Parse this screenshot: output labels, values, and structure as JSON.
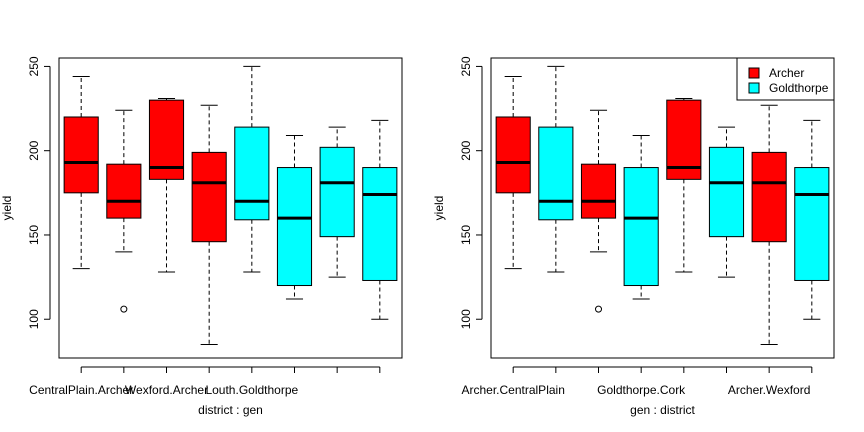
{
  "colors": {
    "Archer": "#ff0000",
    "Goldthorpe": "#00ffff",
    "axis": "#000000"
  },
  "chart_data": [
    {
      "type": "boxplot",
      "xlabel": "district : gen",
      "ylabel": "yield",
      "ylim": [
        77,
        255
      ],
      "yticks": [
        100,
        150,
        200,
        250
      ],
      "grid": false,
      "legend": null,
      "tick_labels": [
        "CentralPlain.Archer",
        "Wexford.Archer",
        "Louth.Goldthorpe"
      ],
      "tick_label_positions": [
        1,
        3,
        5
      ],
      "boxes": [
        {
          "group": "Archer",
          "min": 130,
          "q1": 175,
          "median": 193,
          "q3": 220,
          "max": 244,
          "outliers": []
        },
        {
          "group": "Archer",
          "min": 140,
          "q1": 160,
          "median": 170,
          "q3": 192,
          "max": 224,
          "outliers": [
            106
          ]
        },
        {
          "group": "Archer",
          "min": 128,
          "q1": 183,
          "median": 190,
          "q3": 230,
          "max": 231,
          "outliers": []
        },
        {
          "group": "Archer",
          "min": 85,
          "q1": 146,
          "median": 181,
          "q3": 199,
          "max": 227,
          "outliers": []
        },
        {
          "group": "Goldthorpe",
          "min": 128,
          "q1": 159,
          "median": 170,
          "q3": 214,
          "max": 250,
          "outliers": []
        },
        {
          "group": "Goldthorpe",
          "min": 112,
          "q1": 120,
          "median": 160,
          "q3": 190,
          "max": 209,
          "outliers": []
        },
        {
          "group": "Goldthorpe",
          "min": 125,
          "q1": 149,
          "median": 181,
          "q3": 202,
          "max": 214,
          "outliers": []
        },
        {
          "group": "Goldthorpe",
          "min": 100,
          "q1": 123,
          "median": 174,
          "q3": 190,
          "max": 218,
          "outliers": []
        }
      ]
    },
    {
      "type": "boxplot",
      "xlabel": "gen : district",
      "ylabel": "yield",
      "ylim": [
        77,
        255
      ],
      "yticks": [
        100,
        150,
        200,
        250
      ],
      "grid": false,
      "legend": {
        "placement": "top-right",
        "entries": [
          "Archer",
          "Goldthorpe"
        ]
      },
      "tick_labels": [
        "Archer.CentralPlain",
        "Goldthorpe.Cork",
        "Archer.Wexford"
      ],
      "tick_label_positions": [
        1,
        4,
        7
      ],
      "boxes": [
        {
          "group": "Archer",
          "min": 130,
          "q1": 175,
          "median": 193,
          "q3": 220,
          "max": 244,
          "outliers": []
        },
        {
          "group": "Goldthorpe",
          "min": 128,
          "q1": 159,
          "median": 170,
          "q3": 214,
          "max": 250,
          "outliers": []
        },
        {
          "group": "Archer",
          "min": 140,
          "q1": 160,
          "median": 170,
          "q3": 192,
          "max": 224,
          "outliers": [
            106
          ]
        },
        {
          "group": "Goldthorpe",
          "min": 112,
          "q1": 120,
          "median": 160,
          "q3": 190,
          "max": 209,
          "outliers": []
        },
        {
          "group": "Archer",
          "min": 128,
          "q1": 183,
          "median": 190,
          "q3": 230,
          "max": 231,
          "outliers": []
        },
        {
          "group": "Goldthorpe",
          "min": 125,
          "q1": 149,
          "median": 181,
          "q3": 202,
          "max": 214,
          "outliers": []
        },
        {
          "group": "Archer",
          "min": 85,
          "q1": 146,
          "median": 181,
          "q3": 199,
          "max": 227,
          "outliers": []
        },
        {
          "group": "Goldthorpe",
          "min": 100,
          "q1": 123,
          "median": 174,
          "q3": 190,
          "max": 218,
          "outliers": []
        }
      ]
    }
  ]
}
